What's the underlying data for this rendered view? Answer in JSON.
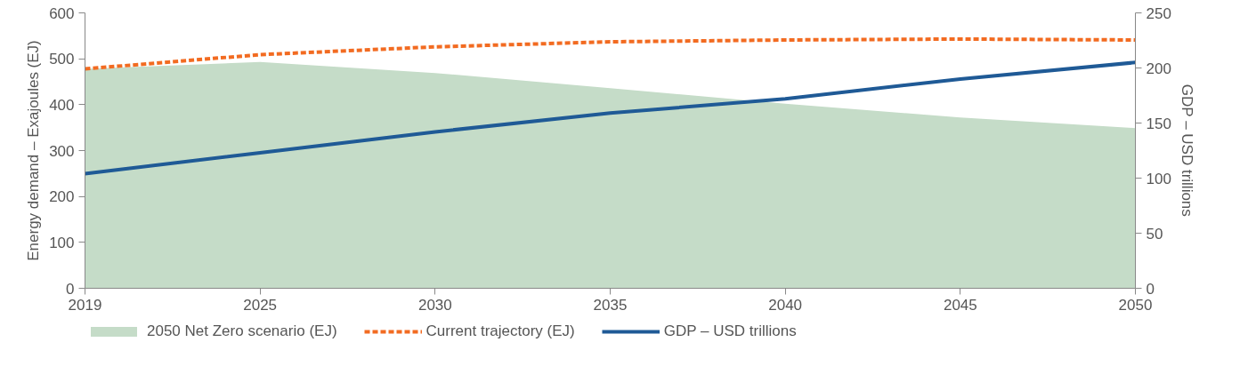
{
  "chart_data": {
    "type": "line",
    "ylabel": "Energy demand – Exajoules (EJ)",
    "y2label": "GDP – USD trillions",
    "categories": [
      "2019",
      "2025",
      "2030",
      "2035",
      "2040",
      "2045",
      "2050"
    ],
    "series": [
      {
        "name": "2050 Net Zero scenario (EJ)",
        "type": "area",
        "color": "#c5dcc8",
        "values": [
          478,
          493,
          469,
          436,
          402,
          372,
          349
        ]
      },
      {
        "name": "Current trajectory (EJ)",
        "type": "line",
        "line_style": "dashed",
        "color": "#f26b21",
        "values": [
          478,
          509,
          526,
          537,
          541,
          543,
          541
        ]
      },
      {
        "name": "GDP – USD trillions",
        "type": "line",
        "line_style": "solid",
        "axis": "y2",
        "color": "#1f5a96",
        "values": [
          104,
          123,
          142,
          159,
          172,
          190,
          205
        ]
      }
    ],
    "ylim": [
      0,
      600
    ],
    "yticks": [
      0,
      100,
      200,
      300,
      400,
      500,
      600
    ],
    "y2lim": [
      0,
      250
    ],
    "y2ticks": [
      0,
      50,
      100,
      150,
      200,
      250
    ],
    "grid": false,
    "legend": "bottom left",
    "marker": "none"
  }
}
